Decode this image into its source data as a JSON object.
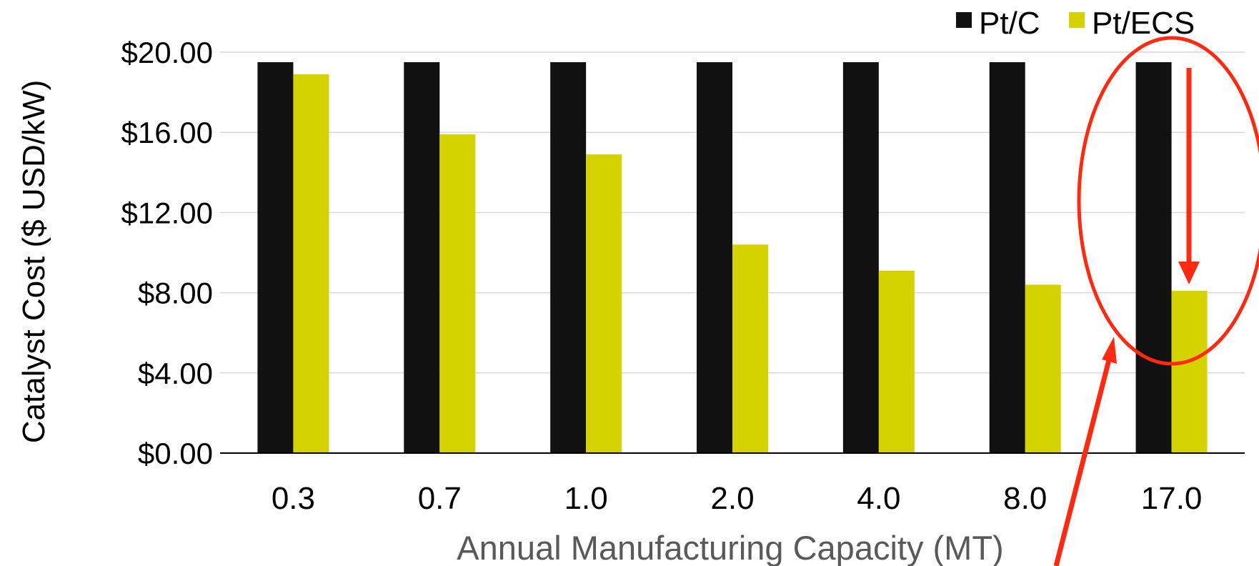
{
  "chart_data": {
    "type": "bar",
    "title": "",
    "xlabel": "Annual Manufacturing Capacity (MT)",
    "ylabel": "Catalyst Cost ($ USD/kW)",
    "categories": [
      "0.3",
      "0.7",
      "1.0",
      "2.0",
      "4.0",
      "8.0",
      "17.0"
    ],
    "y_ticks": [
      "$0.00",
      "$4.00",
      "$8.00",
      "$12.00",
      "$16.00",
      "$20.00"
    ],
    "y_tick_values": [
      0,
      4,
      8,
      12,
      16,
      20
    ],
    "ylim": [
      0,
      20
    ],
    "grid": true,
    "legend_position": "top-right",
    "series": [
      {
        "name": "Pt/C",
        "color": "#111111",
        "values": [
          19.5,
          19.5,
          19.5,
          19.5,
          19.5,
          19.5,
          19.5
        ]
      },
      {
        "name": "Pt/ECS",
        "color": "#d4d200",
        "values": [
          18.9,
          15.9,
          14.9,
          10.4,
          9.1,
          8.4,
          8.1
        ]
      }
    ],
    "annotations": {
      "highlight_category": "17.0",
      "highlight_color": "#ff2a12",
      "shapes": [
        "ellipse-around-last-group",
        "down-arrow-over-last-group",
        "pointer-arrow-from-below"
      ]
    }
  }
}
